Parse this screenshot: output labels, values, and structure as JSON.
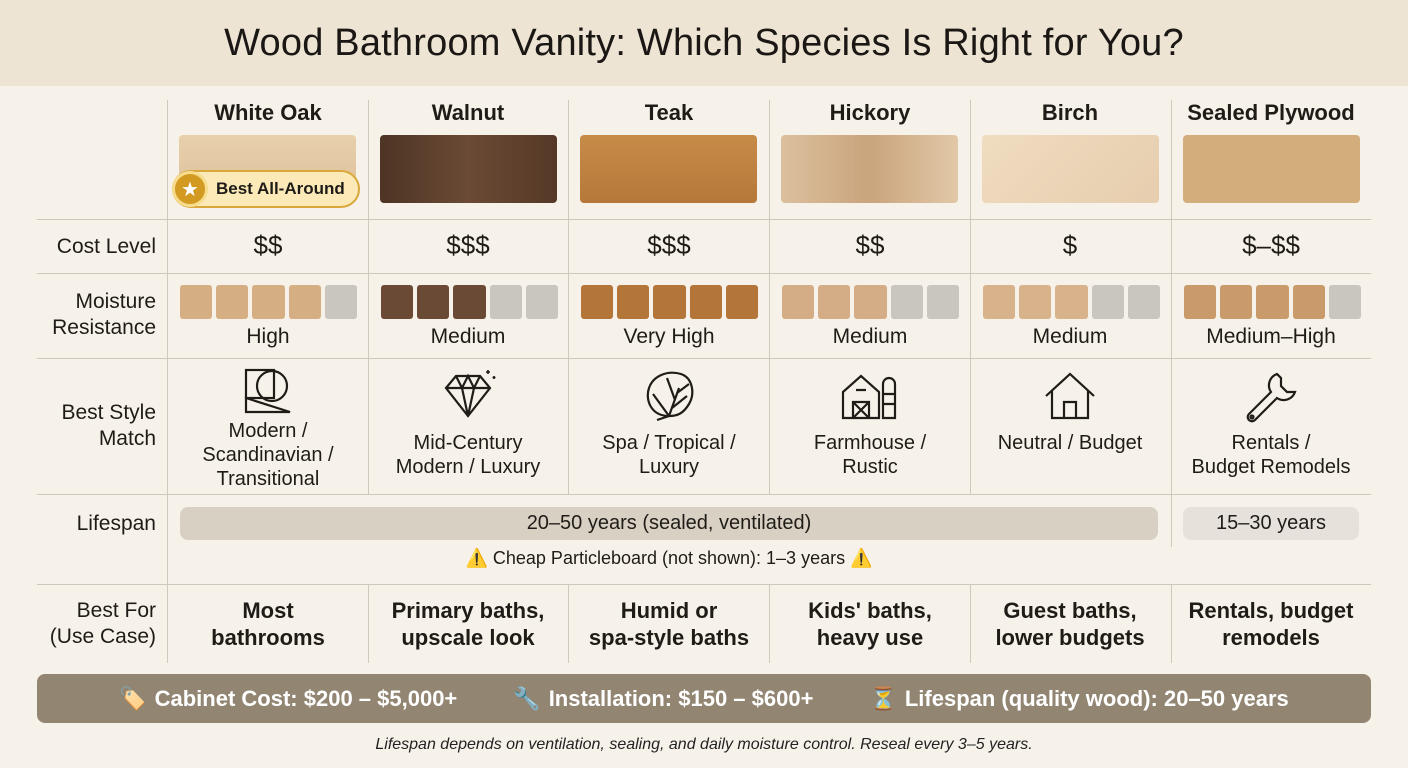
{
  "title": "Wood Bathroom Vanity: Which Species Is Right for You?",
  "species": [
    {
      "name": "White Oak",
      "swatch": "#e3c9a5",
      "cost": "$$",
      "bars": [
        "#d6ae84",
        "#d6ae84",
        "#d6ae84",
        "#d6ae84",
        "#c9c5bf"
      ],
      "moisture": "High",
      "style_lines": [
        "Modern /",
        "Scandinavian /",
        "Transitional"
      ],
      "icon": "geometric-shapes-icon",
      "best_for": [
        "Most",
        "bathrooms"
      ]
    },
    {
      "name": "Walnut",
      "swatch": "#5a3f2d",
      "cost": "$$$",
      "bars": [
        "#6b4a35",
        "#6b4a35",
        "#6b4a35",
        "#c9c5bf",
        "#c9c5bf"
      ],
      "moisture": "Medium",
      "style_lines": [
        "Mid-Century",
        "Modern / Luxury"
      ],
      "icon": "diamond-icon",
      "best_for": [
        "Primary baths,",
        "upscale look"
      ]
    },
    {
      "name": "Teak",
      "swatch": "#bd8342",
      "cost": "$$$",
      "bars": [
        "#b47538",
        "#b47538",
        "#b47538",
        "#b47538",
        "#b47538"
      ],
      "moisture": "Very High",
      "style_lines": [
        "Spa / Tropical /",
        "Luxury"
      ],
      "icon": "monstera-leaf-icon",
      "best_for": [
        "Humid or",
        "spa-style baths"
      ]
    },
    {
      "name": "Hickory",
      "swatch": "#d7b996",
      "cost": "$$",
      "bars": [
        "#d4ad86",
        "#d4ad86",
        "#d4ad86",
        "#c9c5bf",
        "#c9c5bf"
      ],
      "moisture": "Medium",
      "style_lines": [
        "Farmhouse /",
        "Rustic"
      ],
      "icon": "barn-icon",
      "best_for": [
        "Kids' baths,",
        "heavy use"
      ]
    },
    {
      "name": "Birch",
      "swatch": "#ecd6b9",
      "cost": "$",
      "bars": [
        "#d8b28b",
        "#d8b28b",
        "#d8b28b",
        "#c9c5bf",
        "#c9c5bf"
      ],
      "moisture": "Medium",
      "style_lines": [
        "Neutral / Budget"
      ],
      "icon": "house-icon",
      "best_for": [
        "Guest baths,",
        "lower budgets"
      ]
    },
    {
      "name": "Sealed Plywood",
      "swatch": "#d3ad7c",
      "cost": "$–$$",
      "bars": [
        "#c99a6a",
        "#c99a6a",
        "#c99a6a",
        "#c99a6a",
        "#c9c5bf"
      ],
      "moisture": "Medium–High",
      "style_lines": [
        "Rentals /",
        "Budget Remodels"
      ],
      "icon": "wrench-icon",
      "best_for": [
        "Rentals, budget",
        "remodels"
      ]
    }
  ],
  "badge": "Best All-Around",
  "row_labels": {
    "cost": "Cost Level",
    "moisture": [
      "Moisture",
      "Resistance"
    ],
    "style": [
      "Best Style",
      "Match"
    ],
    "lifespan": "Lifespan",
    "bestfor": [
      "Best For",
      "(Use Case)"
    ]
  },
  "lifespan": {
    "main": "20–50 years (sealed, ventilated)",
    "plywood": "15–30 years",
    "warning": "Cheap Particleboard (not shown): 1–3 years"
  },
  "footer": {
    "cabinet": "Cabinet Cost: $200 – $5,000+",
    "installation": "Installation: $150 – $600+",
    "lifespan": "Lifespan (quality wood): 20–50 years"
  },
  "note": "Lifespan depends on ventilation, sealing, and daily moisture control. Reseal every 3–5 years."
}
